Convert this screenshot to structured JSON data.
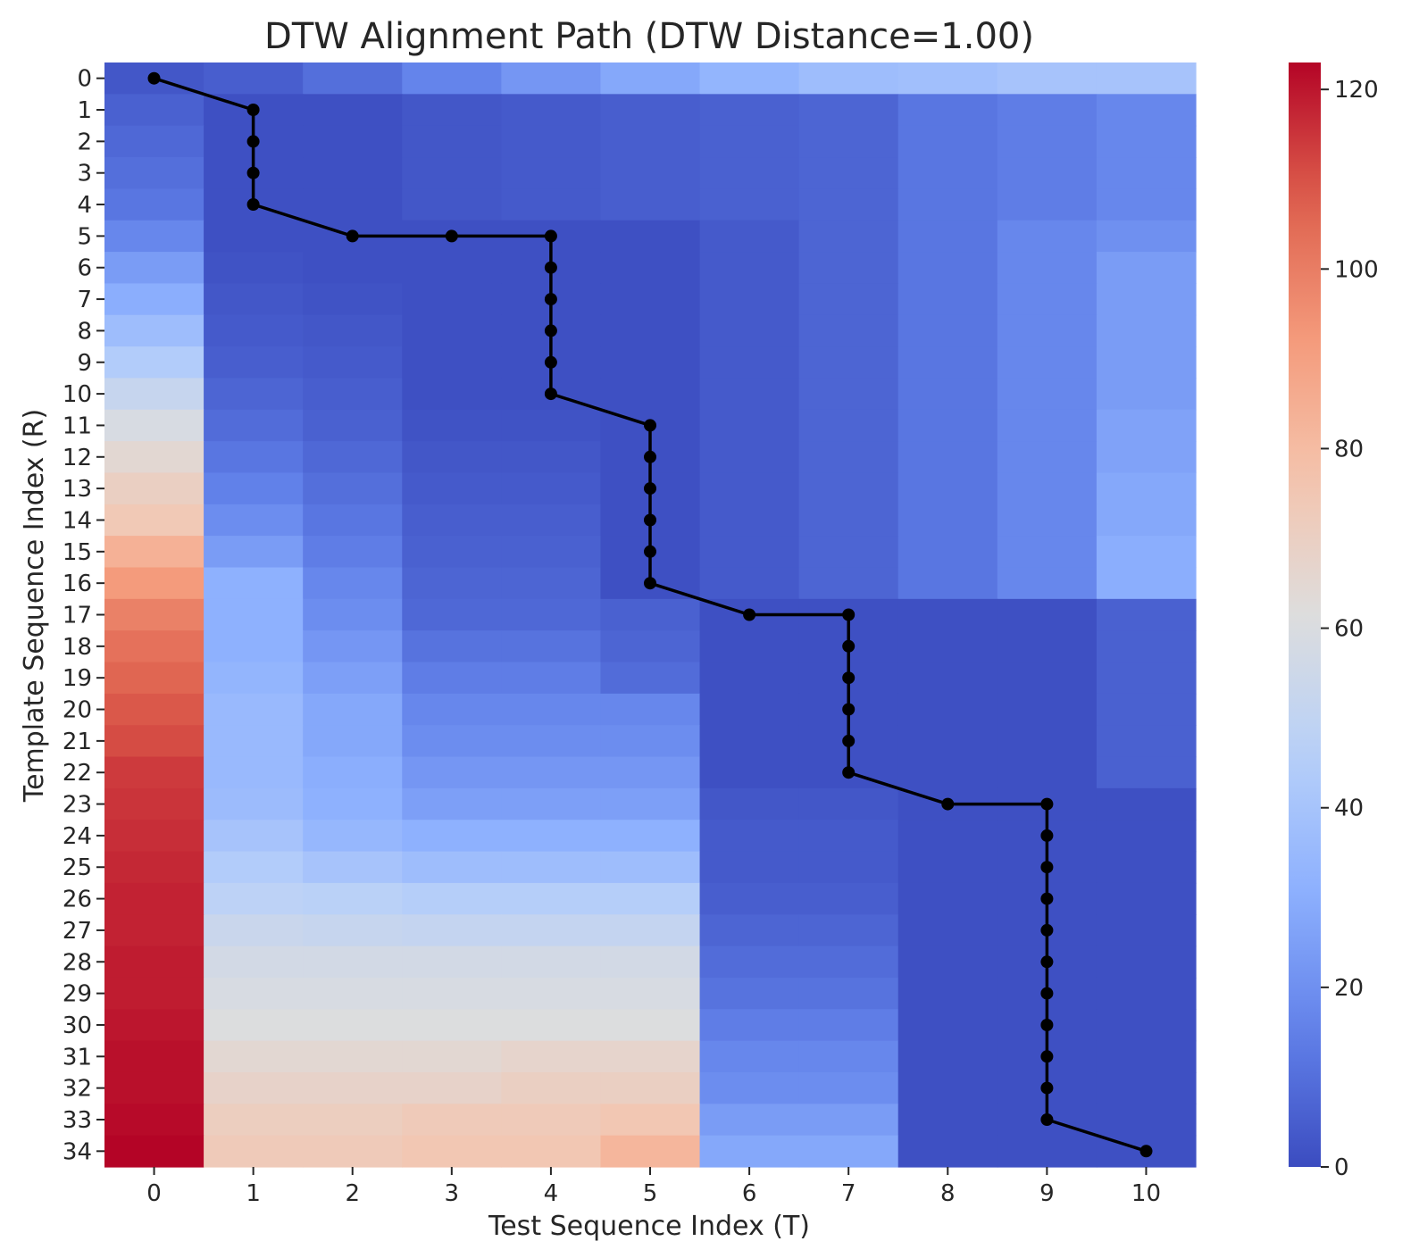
{
  "chart_data": {
    "type": "heatmap",
    "title": "DTW Alignment Path (DTW Distance=1.00)",
    "xlabel": "Test Sequence Index (T)",
    "ylabel": "Template Sequence Index (R)",
    "x_categories": [
      0,
      1,
      2,
      3,
      4,
      5,
      6,
      7,
      8,
      9,
      10
    ],
    "y_categories": [
      0,
      1,
      2,
      3,
      4,
      5,
      6,
      7,
      8,
      9,
      10,
      11,
      12,
      13,
      14,
      15,
      16,
      17,
      18,
      19,
      20,
      21,
      22,
      23,
      24,
      25,
      26,
      27,
      28,
      29,
      30,
      31,
      32,
      33,
      34
    ],
    "colormap": "coolwarm",
    "colorbar": {
      "min": 0,
      "max": 123,
      "ticks": [
        0,
        20,
        40,
        60,
        80,
        100,
        120
      ]
    },
    "cell_values": [
      [
        3,
        5,
        10,
        16,
        22,
        28,
        33,
        37,
        38,
        40,
        40
      ],
      [
        6,
        1,
        1,
        3,
        4,
        5,
        6,
        7,
        12,
        14,
        17
      ],
      [
        8,
        1,
        1,
        3,
        4,
        5,
        6,
        7,
        12,
        14,
        17
      ],
      [
        10,
        1,
        1,
        3,
        4,
        5,
        6,
        7,
        12,
        14,
        17
      ],
      [
        12,
        1,
        1,
        3,
        4,
        5,
        6,
        7,
        12,
        14,
        17
      ],
      [
        17,
        1,
        1,
        1,
        1,
        1,
        4,
        7,
        12,
        17,
        20
      ],
      [
        24,
        2,
        1,
        1,
        1,
        1,
        4,
        7,
        12,
        17,
        24
      ],
      [
        30,
        3,
        2,
        1,
        1,
        1,
        4,
        7,
        12,
        17,
        24
      ],
      [
        37,
        4,
        3,
        1,
        1,
        1,
        4,
        7,
        12,
        17,
        24
      ],
      [
        44,
        5,
        4,
        1,
        1,
        1,
        4,
        7,
        12,
        17,
        24
      ],
      [
        52,
        7,
        5,
        1,
        1,
        1,
        4,
        7,
        12,
        17,
        24
      ],
      [
        59,
        9,
        6,
        2,
        2,
        1,
        4,
        7,
        12,
        17,
        26
      ],
      [
        65,
        12,
        8,
        3,
        3,
        1,
        4,
        7,
        12,
        17,
        26
      ],
      [
        70,
        15,
        10,
        4,
        4,
        1,
        4,
        7,
        12,
        17,
        28
      ],
      [
        74,
        19,
        12,
        5,
        5,
        1,
        4,
        7,
        12,
        17,
        28
      ],
      [
        84,
        24,
        14,
        6,
        6,
        1,
        4,
        7,
        12,
        17,
        30
      ],
      [
        92,
        31,
        17,
        7,
        7,
        1,
        4,
        7,
        12,
        17,
        30
      ],
      [
        99,
        31,
        19,
        8,
        8,
        6,
        1,
        1,
        1,
        1,
        6
      ],
      [
        103,
        31,
        22,
        11,
        11,
        7,
        1,
        1,
        1,
        1,
        6
      ],
      [
        106,
        33,
        25,
        14,
        14,
        9,
        1,
        1,
        1,
        1,
        6
      ],
      [
        109,
        35,
        28,
        17,
        17,
        17,
        1,
        1,
        1,
        1,
        6
      ],
      [
        111,
        35,
        28,
        19,
        19,
        19,
        1,
        1,
        1,
        1,
        6
      ],
      [
        114,
        35,
        30,
        22,
        22,
        22,
        1,
        1,
        1,
        1,
        6
      ],
      [
        115,
        36,
        31,
        25,
        25,
        25,
        3,
        3,
        1,
        1,
        1
      ],
      [
        116,
        40,
        34,
        31,
        31,
        31,
        4,
        4,
        1,
        1,
        1
      ],
      [
        117,
        44,
        40,
        37,
        37,
        37,
        4,
        4,
        1,
        1,
        1
      ],
      [
        118,
        48,
        47,
        45,
        45,
        45,
        5,
        5,
        1,
        1,
        1
      ],
      [
        118,
        53,
        52,
        51,
        51,
        51,
        7,
        7,
        1,
        1,
        1
      ],
      [
        119,
        57,
        57,
        57,
        57,
        57,
        9,
        9,
        1,
        1,
        1
      ],
      [
        119,
        59,
        59,
        59,
        59,
        59,
        11,
        11,
        1,
        1,
        1
      ],
      [
        120,
        61,
        61,
        61,
        61,
        61,
        14,
        14,
        1,
        1,
        1
      ],
      [
        121,
        65,
        65,
        65,
        67,
        67,
        17,
        17,
        1,
        1,
        1
      ],
      [
        121,
        68,
        68,
        68,
        70,
        70,
        19,
        19,
        1,
        1,
        1
      ],
      [
        122,
        71,
        71,
        73,
        73,
        75,
        24,
        24,
        1,
        1,
        1
      ],
      [
        123,
        73,
        73,
        75,
        75,
        82,
        28,
        28,
        1,
        1,
        1
      ]
    ],
    "path": [
      [
        0,
        0
      ],
      [
        1,
        1
      ],
      [
        1,
        2
      ],
      [
        1,
        3
      ],
      [
        1,
        4
      ],
      [
        2,
        5
      ],
      [
        3,
        5
      ],
      [
        4,
        5
      ],
      [
        4,
        6
      ],
      [
        4,
        7
      ],
      [
        4,
        8
      ],
      [
        4,
        9
      ],
      [
        4,
        10
      ],
      [
        5,
        11
      ],
      [
        5,
        12
      ],
      [
        5,
        13
      ],
      [
        5,
        14
      ],
      [
        5,
        15
      ],
      [
        5,
        16
      ],
      [
        6,
        17
      ],
      [
        7,
        17
      ],
      [
        7,
        18
      ],
      [
        7,
        19
      ],
      [
        7,
        20
      ],
      [
        7,
        21
      ],
      [
        7,
        22
      ],
      [
        8,
        23
      ],
      [
        9,
        23
      ],
      [
        9,
        24
      ],
      [
        9,
        25
      ],
      [
        9,
        26
      ],
      [
        9,
        27
      ],
      [
        9,
        28
      ],
      [
        9,
        29
      ],
      [
        9,
        30
      ],
      [
        9,
        31
      ],
      [
        9,
        32
      ],
      [
        9,
        33
      ],
      [
        10,
        34
      ]
    ],
    "path_color": "#000000"
  }
}
